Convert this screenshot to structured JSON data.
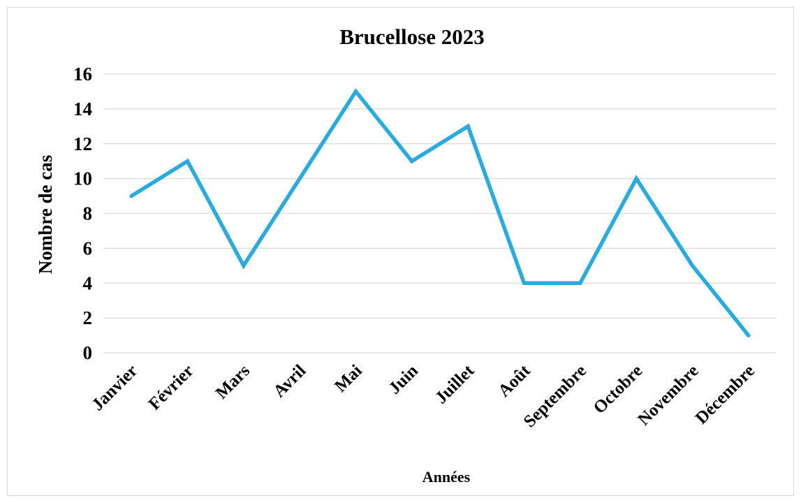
{
  "chart_data": {
    "type": "line",
    "title": "Brucellose 2023",
    "xlabel": "Années",
    "ylabel": "Nombre de cas",
    "categories": [
      "Janvier",
      "Février",
      "Mars",
      "Avril",
      "Mai",
      "Juin",
      "Juillet",
      "Août",
      "Septembre",
      "Octobre",
      "Novembre",
      "Décembre"
    ],
    "series": [
      {
        "values": [
          9,
          11,
          5,
          10,
          15,
          11,
          13,
          4,
          4,
          10,
          5,
          1
        ],
        "color": "#29abe2"
      }
    ],
    "ylim": [
      0,
      16
    ],
    "yticks": [
      0,
      2,
      4,
      6,
      8,
      10,
      12,
      14,
      16
    ],
    "grid": true,
    "legend": "none"
  }
}
